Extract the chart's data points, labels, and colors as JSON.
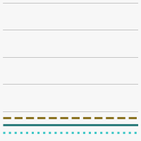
{
  "x": [
    0,
    1
  ],
  "lines": [
    {
      "y": [
        0.15,
        0.15
      ],
      "color": "#8B7322",
      "linestyle": "--",
      "linewidth": 2.2
    },
    {
      "y": [
        0.1,
        0.1
      ],
      "color": "#2E7D7D",
      "linestyle": "-",
      "linewidth": 2.2
    },
    {
      "y": [
        0.04,
        0.04
      ],
      "color": "#40C8C8",
      "linestyle": ":",
      "linewidth": 2.2
    }
  ],
  "ylim": [
    0,
    1
  ],
  "xlim": [
    0,
    1
  ],
  "grid_color": "#b0b0b0",
  "grid_linewidth": 0.5,
  "background_color": "#f7f7f7",
  "yticks": [
    0.0,
    0.2,
    0.4,
    0.6,
    0.8,
    1.0
  ]
}
